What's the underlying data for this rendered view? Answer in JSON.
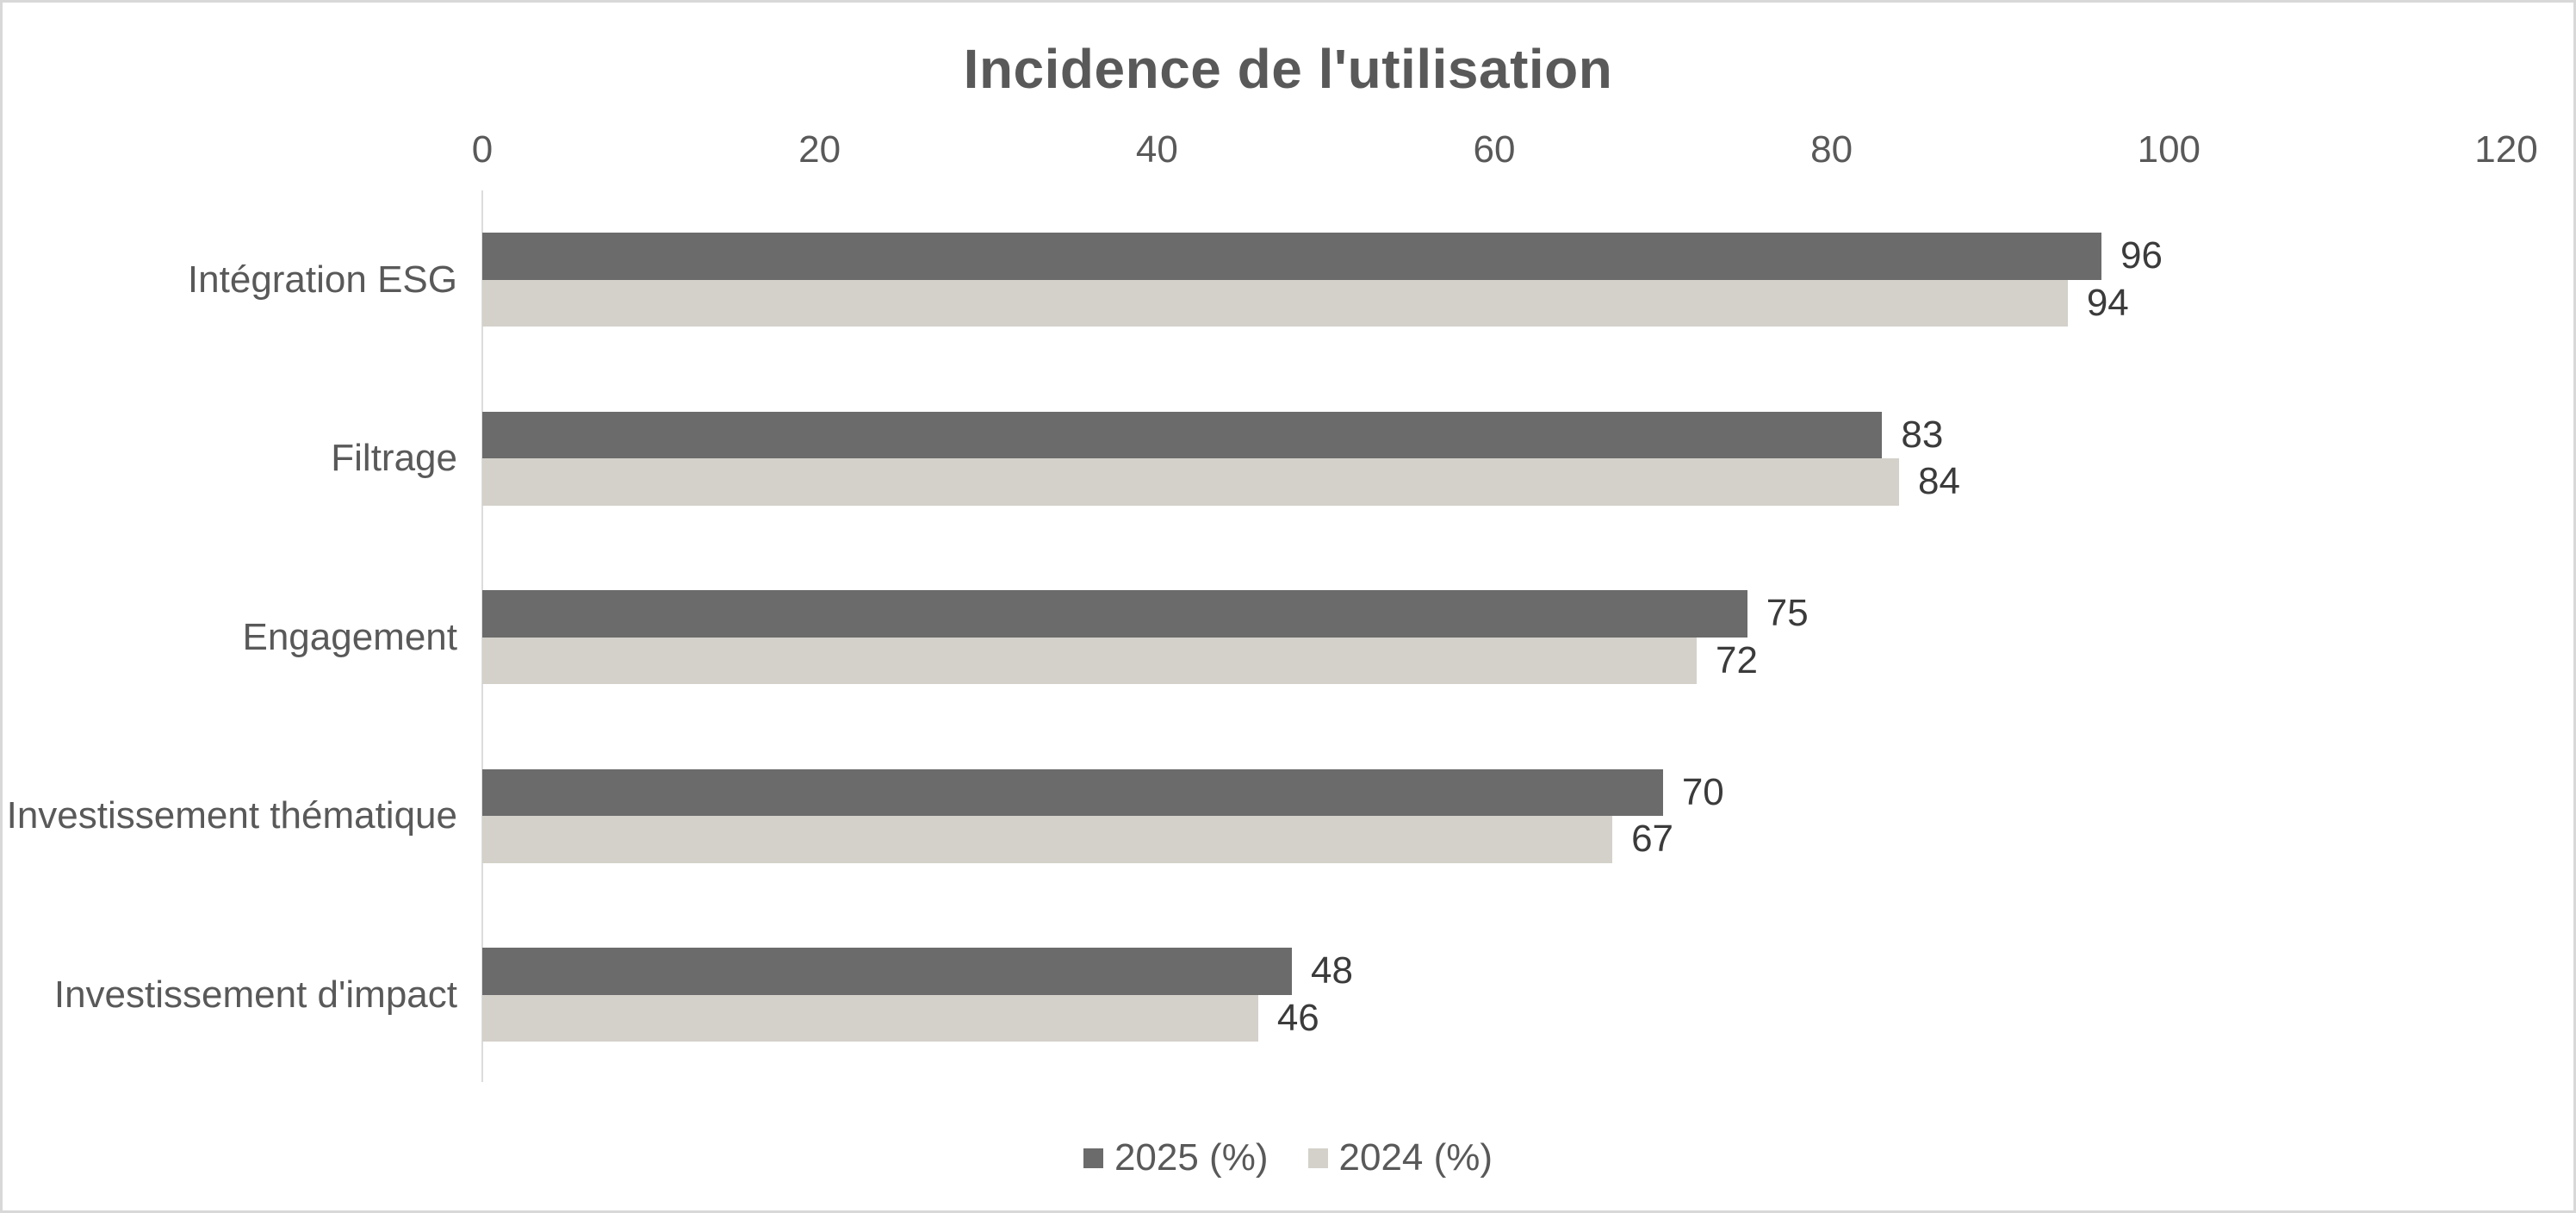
{
  "chart_data": {
    "type": "bar",
    "orientation": "horizontal",
    "title": "Incidence de l'utilisation",
    "categories": [
      "Intégration ESG",
      "Filtrage",
      "Engagement",
      "Investissement thématique",
      "Investissement d'impact"
    ],
    "series": [
      {
        "name": "2025 (%)",
        "color": "#6b6b6b",
        "values": [
          96,
          83,
          75,
          70,
          48
        ]
      },
      {
        "name": "2024 (%)",
        "color": "#d4d1ca",
        "values": [
          94,
          84,
          72,
          67,
          46
        ]
      }
    ],
    "x_axis": {
      "position": "top",
      "min": 0,
      "max": 120,
      "tick_interval": 20,
      "tick_labels": [
        "0",
        "20",
        "40",
        "60",
        "80",
        "100",
        "120"
      ]
    },
    "data_labels": true,
    "grid": false,
    "legend_position": "bottom",
    "colors": {
      "title_text": "#595959",
      "axis_text": "#595959",
      "category_text": "#595959",
      "value_text": "#3b3b3b",
      "axis_line": "#dcdcdc",
      "frame_border": "#d8d8d8",
      "background": "#ffffff"
    }
  }
}
